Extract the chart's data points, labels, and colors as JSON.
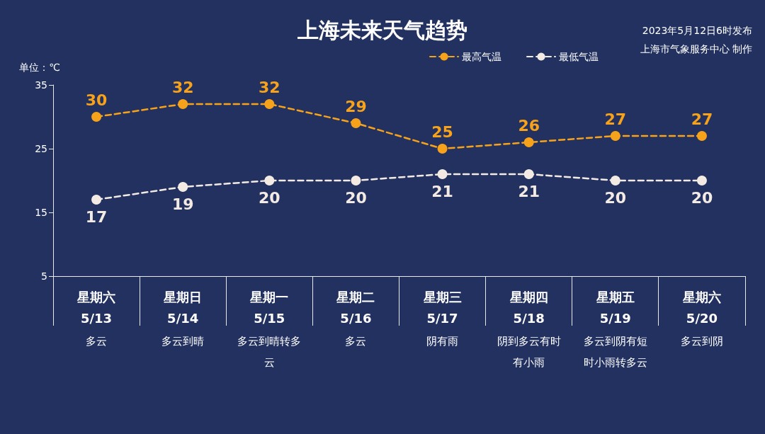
{
  "chart_data": {
    "type": "line",
    "title": "上海未来天气趋势",
    "ylabel": "单位：℃",
    "categories": [
      "星期六\n5/13",
      "星期日\n5/14",
      "星期一\n5/15",
      "星期二\n5/16",
      "星期三\n5/17",
      "星期四\n5/18",
      "星期五\n5/19",
      "星期六\n5/20"
    ],
    "series": [
      {
        "name": "最高气温",
        "color": "#f6a21b",
        "values": [
          30,
          32,
          32,
          29,
          25,
          26,
          27,
          27
        ]
      },
      {
        "name": "最低气温",
        "color": "#f3ebe3",
        "values": [
          17,
          19,
          20,
          20,
          21,
          21,
          20,
          20
        ]
      }
    ],
    "ylim": [
      5,
      35
    ],
    "yticks": [
      5,
      15,
      25,
      35
    ],
    "grid": false,
    "legend": "top right",
    "marker": "circle",
    "line_style": "dashed",
    "data_labels": true,
    "annotations": [
      "2023年5月12日6时发布",
      "上海市气象服务中心 制作",
      "多云",
      "多云到晴",
      "多云到晴转多云",
      "多云",
      "阴有雨",
      "阴到多云有时有小雨",
      "多云到阴有短时小雨转多云",
      "多云到阴"
    ]
  }
}
